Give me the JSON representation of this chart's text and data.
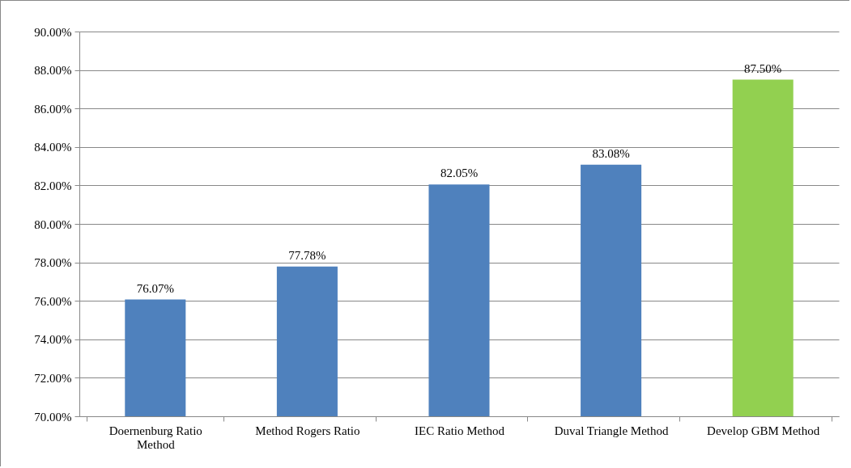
{
  "chart_data": {
    "type": "bar",
    "categories": [
      "Doernenburg Ratio Method",
      "Method Rogers Ratio",
      "IEC Ratio Method",
      "Duval Triangle Method",
      "Develop GBM Method"
    ],
    "values": [
      76.07,
      77.78,
      82.05,
      83.08,
      87.5
    ],
    "colors": [
      "#4f81bd",
      "#4f81bd",
      "#4f81bd",
      "#4f81bd",
      "#92d050"
    ],
    "value_labels": [
      "76.07%",
      "77.78%",
      "82.05%",
      "83.08%",
      "87.50%"
    ],
    "ylim": [
      70,
      90
    ],
    "yticks": [
      {
        "value": 70,
        "label": "70.00%"
      },
      {
        "value": 72,
        "label": "72.00%"
      },
      {
        "value": 74,
        "label": "74.00%"
      },
      {
        "value": 76,
        "label": "76.00%"
      },
      {
        "value": 78,
        "label": "78.00%"
      },
      {
        "value": 80,
        "label": "80.00%"
      },
      {
        "value": 82,
        "label": "82.00%"
      },
      {
        "value": 84,
        "label": "84.00%"
      },
      {
        "value": 86,
        "label": "86.00%"
      },
      {
        "value": 88,
        "label": "88.00%"
      },
      {
        "value": 90,
        "label": "90.00%"
      }
    ],
    "grid": "y"
  }
}
